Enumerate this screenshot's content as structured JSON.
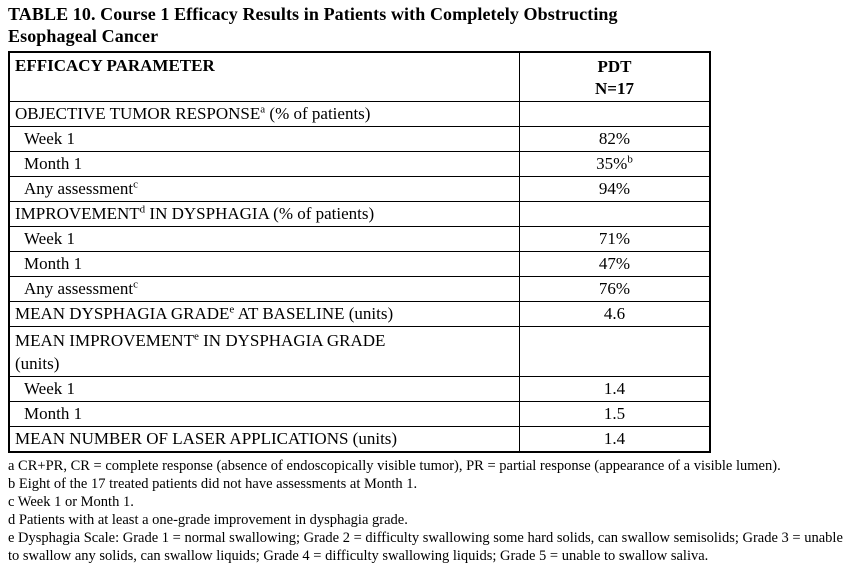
{
  "title": {
    "line1": "TABLE 10. Course 1 Efficacy Results in Patients with Completely Obstructing",
    "line2": "Esophageal Cancer"
  },
  "table": {
    "header": {
      "col1": "EFFICACY PARAMETER",
      "col2_line1": "PDT",
      "col2_line2": "N=17"
    },
    "rows": [
      {
        "label": "OBJECTIVE TUMOR RESPONSE",
        "sup": "a",
        "suffix": " (% of patients)",
        "value": "",
        "indent": false
      },
      {
        "label": "Week 1",
        "value": "82%",
        "indent": true
      },
      {
        "label": "Month 1",
        "value": "35%",
        "value_sup": "b",
        "indent": true
      },
      {
        "label": "Any assessment",
        "sup": "c",
        "value": "94%",
        "indent": true
      },
      {
        "label": "IMPROVEMENT",
        "sup": "d",
        "suffix": " IN DYSPHAGIA (% of patients)",
        "value": "",
        "indent": false
      },
      {
        "label": "Week 1",
        "value": "71%",
        "indent": true
      },
      {
        "label": "Month 1",
        "value": "47%",
        "indent": true
      },
      {
        "label": "Any assessment",
        "sup": "c",
        "value": "76%",
        "indent": true
      },
      {
        "label": "MEAN DYSPHAGIA GRADE",
        "sup": "e",
        "suffix": " AT BASELINE (units)",
        "value": "4.6",
        "indent": false
      },
      {
        "label": "MEAN IMPROVEMENT",
        "sup": "e",
        "suffix": " IN DYSPHAGIA GRADE",
        "suffix2": "(units)",
        "value": "",
        "indent": false,
        "tall": true
      },
      {
        "label": "Week 1",
        "value": "1.4",
        "indent": true
      },
      {
        "label": "Month 1",
        "value": "1.5",
        "indent": true
      },
      {
        "label": "MEAN NUMBER OF LASER APPLICATIONS (units)",
        "value": "1.4",
        "indent": false
      }
    ]
  },
  "footnotes": [
    "a CR+PR, CR = complete response (absence of endoscopically visible tumor), PR = partial response (appearance of a visible lumen).",
    "b Eight of the 17 treated patients did not have assessments at Month 1.",
    "c Week 1 or Month 1.",
    "d Patients with at least a one-grade improvement in dysphagia grade.",
    "e Dysphagia Scale: Grade 1 = normal swallowing; Grade 2 = difficulty swallowing some hard solids, can swallow semisolids; Grade 3 = unable to swallow any solids, can swallow liquids; Grade 4 = difficulty swallowing liquids; Grade 5 = unable to swallow saliva."
  ]
}
